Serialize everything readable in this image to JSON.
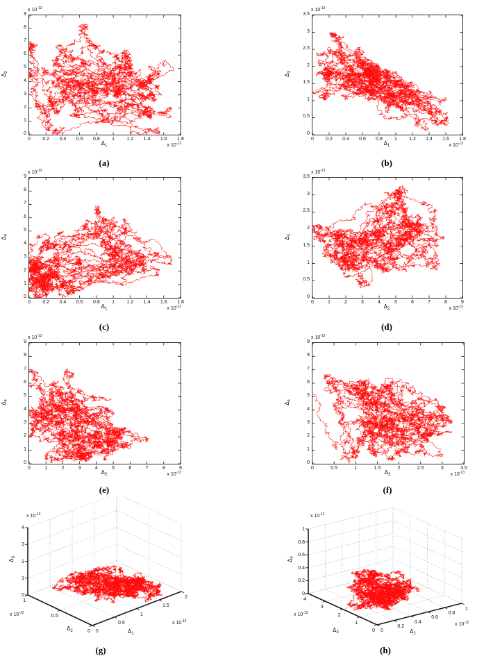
{
  "figure": {
    "background": "#ffffff",
    "trace_color": "#ff0000",
    "axis_color": "#1a1a1a",
    "grid_color": "#9a9a9a"
  },
  "chart_data": [
    {
      "id": "a",
      "caption": "(a)",
      "type": "line",
      "description": "dense chaotic 2D trajectory (random-walk-like curve)",
      "xlabel": {
        "symbol": "Δ",
        "sub": "1"
      },
      "ylabel": {
        "symbol": "Δ",
        "sub": "2"
      },
      "x_exp": {
        "text": "x 10",
        "power": "-12"
      },
      "y_exp": {
        "text": "x 10",
        "power": "-13"
      },
      "xlim": [
        0,
        1.8e-12
      ],
      "ylim": [
        0,
        9e-13
      ],
      "xticks": [
        "0",
        "0.2",
        "0.4",
        "0.6",
        "0.8",
        "1",
        "1.2",
        "1.4",
        "1.6",
        "1.8"
      ],
      "yticks": [
        "0",
        "1",
        "2",
        "3",
        "4",
        "5",
        "6",
        "7",
        "8",
        "9"
      ],
      "render_hint": {
        "projection": "2d",
        "seed": 11,
        "points": 12000,
        "step": 0.016,
        "clusters": [
          {
            "x": [
              0,
              0.2
            ],
            "y": [
              0,
              0.75
            ],
            "w": 3
          },
          {
            "x": [
              0.1,
              0.6
            ],
            "y": [
              0,
              0.5
            ],
            "w": 2
          },
          {
            "x": [
              0.3,
              0.7
            ],
            "y": [
              0.45,
              0.85
            ],
            "w": 2
          },
          {
            "x": [
              0.55,
              0.95
            ],
            "y": [
              0.15,
              0.75
            ],
            "w": 3
          },
          {
            "x": [
              0.75,
              0.95
            ],
            "y": [
              0.05,
              0.3
            ],
            "w": 1
          }
        ]
      }
    },
    {
      "id": "b",
      "caption": "(b)",
      "type": "line",
      "description": "dense chaotic 2D trajectory (random-walk-like curve)",
      "xlabel": {
        "symbol": "Δ",
        "sub": "1"
      },
      "ylabel": {
        "symbol": "Δ",
        "sub": "3"
      },
      "x_exp": {
        "text": "x 10",
        "power": "-12"
      },
      "y_exp": {
        "text": "x 10",
        "power": "-13"
      },
      "xlim": [
        0,
        1.8e-12
      ],
      "ylim": [
        0,
        3.5e-13
      ],
      "xticks": [
        "0",
        "0.2",
        "0.4",
        "0.6",
        "0.8",
        "1",
        "1.2",
        "1.4",
        "1.6",
        "1.8"
      ],
      "yticks": [
        "0",
        "0.5",
        "1",
        "1.5",
        "2",
        "2.5",
        "3",
        "3.5"
      ],
      "render_hint": {
        "projection": "2d",
        "seed": 22,
        "points": 12000,
        "step": 0.016,
        "clusters": [
          {
            "x": [
              0,
              0.15
            ],
            "y": [
              0.25,
              0.88
            ],
            "w": 3
          },
          {
            "x": [
              0.1,
              0.45
            ],
            "y": [
              0.4,
              0.62
            ],
            "w": 2
          },
          {
            "x": [
              0.35,
              0.75
            ],
            "y": [
              0.25,
              0.6
            ],
            "w": 3
          },
          {
            "x": [
              0.55,
              0.95
            ],
            "y": [
              0.02,
              0.3
            ],
            "w": 2
          },
          {
            "x": [
              0.8,
              0.97
            ],
            "y": [
              0.1,
              0.2
            ],
            "w": 1
          }
        ]
      }
    },
    {
      "id": "c",
      "caption": "(c)",
      "type": "line",
      "description": "dense chaotic 2D trajectory (random-walk-like curve)",
      "xlabel": {
        "symbol": "Δ",
        "sub": "1"
      },
      "ylabel": {
        "symbol": "Δ",
        "sub": "4"
      },
      "x_exp": {
        "text": "x 10",
        "power": "-12"
      },
      "y_exp": {
        "text": "x 10",
        "power": "-13"
      },
      "xlim": [
        0,
        1.8e-12
      ],
      "ylim": [
        0,
        9e-13
      ],
      "xticks": [
        "0",
        "0.2",
        "0.4",
        "0.6",
        "0.8",
        "1",
        "1.2",
        "1.4",
        "1.6",
        "1.8"
      ],
      "yticks": [
        "0",
        "1",
        "2",
        "3",
        "4",
        "5",
        "6",
        "7",
        "8",
        "9"
      ],
      "render_hint": {
        "projection": "2d",
        "seed": 33,
        "points": 12000,
        "step": 0.016,
        "clusters": [
          {
            "x": [
              0,
              0.12
            ],
            "y": [
              0,
              0.5
            ],
            "w": 4
          },
          {
            "x": [
              0.05,
              0.45
            ],
            "y": [
              0,
              0.18
            ],
            "w": 2
          },
          {
            "x": [
              0.3,
              0.55
            ],
            "y": [
              0.2,
              0.9
            ],
            "w": 2
          },
          {
            "x": [
              0.45,
              0.75
            ],
            "y": [
              0.5,
              0.75
            ],
            "w": 1
          },
          {
            "x": [
              0.5,
              0.95
            ],
            "y": [
              0.2,
              0.38
            ],
            "w": 3
          }
        ]
      }
    },
    {
      "id": "d",
      "caption": "(d)",
      "type": "line",
      "description": "dense chaotic 2D trajectory (random-walk-like curve)",
      "xlabel": {
        "symbol": "Δ",
        "sub": "2"
      },
      "ylabel": {
        "symbol": "Δ",
        "sub": "3"
      },
      "x_exp": {
        "text": "x 10",
        "power": "-13"
      },
      "y_exp": {
        "text": "x 10",
        "power": "-13"
      },
      "xlim": [
        0,
        9e-13
      ],
      "ylim": [
        0,
        3.5e-13
      ],
      "xticks": [
        "0",
        "1",
        "2",
        "3",
        "4",
        "5",
        "6",
        "7",
        "8",
        "9"
      ],
      "yticks": [
        "0",
        "0.5",
        "1",
        "1.5",
        "2",
        "2.5",
        "3",
        "3.5"
      ],
      "render_hint": {
        "projection": "2d",
        "seed": 44,
        "points": 12000,
        "step": 0.016,
        "clusters": [
          {
            "x": [
              0,
              0.3
            ],
            "y": [
              0.3,
              0.62
            ],
            "w": 4
          },
          {
            "x": [
              0.1,
              0.55
            ],
            "y": [
              0.05,
              0.5
            ],
            "w": 2
          },
          {
            "x": [
              0.45,
              0.85
            ],
            "y": [
              0.2,
              0.58
            ],
            "w": 3
          },
          {
            "x": [
              0.38,
              0.62
            ],
            "y": [
              0.75,
              0.92
            ],
            "w": 1
          },
          {
            "x": [
              0.6,
              0.85
            ],
            "y": [
              0.45,
              0.62
            ],
            "w": 1
          }
        ]
      }
    },
    {
      "id": "e",
      "caption": "(e)",
      "type": "line",
      "description": "dense chaotic 2D trajectory (random-walk-like curve)",
      "xlabel": {
        "symbol": "Δ",
        "sub": "2"
      },
      "ylabel": {
        "symbol": "Δ",
        "sub": "4"
      },
      "x_exp": {
        "text": "x 10",
        "power": "-13"
      },
      "y_exp": {
        "text": "x 10",
        "power": "-13"
      },
      "xlim": [
        0,
        9e-13
      ],
      "ylim": [
        0,
        9e-13
      ],
      "xticks": [
        "0",
        "1",
        "2",
        "3",
        "4",
        "5",
        "6",
        "7",
        "8",
        "9"
      ],
      "yticks": [
        "0",
        "1",
        "2",
        "3",
        "4",
        "5",
        "6",
        "7",
        "8",
        "9"
      ],
      "render_hint": {
        "projection": "2d",
        "seed": 55,
        "points": 12000,
        "step": 0.016,
        "clusters": [
          {
            "x": [
              0,
              0.2
            ],
            "y": [
              0.3,
              0.85
            ],
            "w": 3
          },
          {
            "x": [
              0,
              0.45
            ],
            "y": [
              0,
              0.45
            ],
            "w": 3
          },
          {
            "x": [
              0.25,
              0.75
            ],
            "y": [
              0.02,
              0.3
            ],
            "w": 3
          },
          {
            "x": [
              0.3,
              0.6
            ],
            "y": [
              0.35,
              0.55
            ],
            "w": 1
          },
          {
            "x": [
              0.55,
              0.8
            ],
            "y": [
              0.1,
              0.25
            ],
            "w": 1
          }
        ]
      }
    },
    {
      "id": "f",
      "caption": "(f)",
      "type": "line",
      "description": "dense chaotic 2D trajectory (random-walk-like curve)",
      "xlabel": {
        "symbol": "Δ",
        "sub": "3"
      },
      "ylabel": {
        "symbol": "Δ",
        "sub": "4"
      },
      "x_exp": {
        "text": "x 10",
        "power": "-13"
      },
      "y_exp": {
        "text": "x 10",
        "power": "-13"
      },
      "xlim": [
        0,
        3.5e-13
      ],
      "ylim": [
        0,
        9e-13
      ],
      "xticks": [
        "0",
        "0.5",
        "1",
        "1.5",
        "2",
        "2.5",
        "3",
        "3.5"
      ],
      "yticks": [
        "0",
        "1",
        "2",
        "3",
        "4",
        "5",
        "6",
        "7",
        "8",
        "9"
      ],
      "render_hint": {
        "projection": "2d",
        "seed": 66,
        "points": 12000,
        "step": 0.016,
        "clusters": [
          {
            "x": [
              0,
              0.3
            ],
            "y": [
              0.55,
              0.78
            ],
            "w": 2
          },
          {
            "x": [
              0.25,
              0.62
            ],
            "y": [
              0.3,
              0.78
            ],
            "w": 2
          },
          {
            "x": [
              0.35,
              0.65
            ],
            "y": [
              0,
              0.42
            ],
            "w": 4
          },
          {
            "x": [
              0,
              0.45
            ],
            "y": [
              0,
              0.07
            ],
            "w": 1
          },
          {
            "x": [
              0.72,
              0.95
            ],
            "y": [
              0.08,
              0.55
            ],
            "w": 2
          }
        ]
      }
    },
    {
      "id": "g",
      "caption": "(g)",
      "type": "line",
      "description": "dense chaotic 3D trajectory cloud lying near the floor of the axes box",
      "xlabel": {
        "symbol": "Δ",
        "sub": "1"
      },
      "ylabel": {
        "symbol": "Δ",
        "sub": "2"
      },
      "zlabel": {
        "symbol": "Δ",
        "sub": "3"
      },
      "x_exp": {
        "text": "x 10",
        "power": "-12"
      },
      "y_exp": {
        "text": "x 10",
        "power": "-12"
      },
      "z_exp": {
        "text": "x 10",
        "power": "-13"
      },
      "xlim": [
        0,
        2e-12
      ],
      "ylim": [
        0,
        1e-12
      ],
      "zlim": [
        0,
        4e-13
      ],
      "xticks": [
        "0",
        "0.5",
        "1",
        "1.5",
        "2"
      ],
      "yticks": [
        "0",
        "0.5",
        "1"
      ],
      "zticks": [
        "0",
        "1",
        "2",
        "3",
        "4"
      ],
      "render_hint": {
        "projection": "3d",
        "seed": 77,
        "points": 12000,
        "step": 0.018,
        "clusters": [
          {
            "x": [
              0.05,
              0.5
            ],
            "y": [
              0.25,
              0.95
            ],
            "z": [
              0,
              0.4
            ],
            "w": 3
          },
          {
            "x": [
              0.3,
              0.85
            ],
            "y": [
              0.1,
              0.7
            ],
            "z": [
              0,
              0.3
            ],
            "w": 3
          },
          {
            "x": [
              0.45,
              0.9
            ],
            "y": [
              0,
              0.45
            ],
            "z": [
              0,
              0.15
            ],
            "w": 2
          }
        ]
      }
    },
    {
      "id": "h",
      "caption": "(h)",
      "type": "line",
      "description": "dense chaotic 3D trajectory cloud centered in the axes box",
      "xlabel": {
        "symbol": "Δ",
        "sub": "2"
      },
      "ylabel": {
        "symbol": "Δ",
        "sub": "3"
      },
      "zlabel": {
        "symbol": "Δ",
        "sub": "4"
      },
      "x_exp": {
        "text": "x 10",
        "power": "-12"
      },
      "y_exp": {
        "text": "x 10",
        "power": "-13"
      },
      "z_exp": {
        "text": "x 10",
        "power": "-12"
      },
      "xlim": [
        0,
        1e-12
      ],
      "ylim": [
        0,
        4e-13
      ],
      "zlim": [
        0,
        1e-12
      ],
      "xticks": [
        "0",
        "0.2",
        "0.4",
        "0.6",
        "0.8",
        "1"
      ],
      "yticks": [
        "0",
        "1",
        "2",
        "3",
        "4"
      ],
      "zticks": [
        "0",
        "0.2",
        "0.4",
        "0.6",
        "0.8",
        "1"
      ],
      "render_hint": {
        "projection": "3d",
        "seed": 88,
        "points": 12000,
        "step": 0.018,
        "clusters": [
          {
            "x": [
              0.1,
              0.45
            ],
            "y": [
              0.3,
              0.7
            ],
            "z": [
              0.1,
              0.55
            ],
            "w": 3
          },
          {
            "x": [
              0.3,
              0.75
            ],
            "y": [
              0.2,
              0.6
            ],
            "z": [
              0,
              0.35
            ],
            "w": 3
          },
          {
            "x": [
              0.05,
              0.35
            ],
            "y": [
              0.1,
              0.55
            ],
            "z": [
              0,
              0.2
            ],
            "w": 2
          }
        ]
      }
    }
  ]
}
